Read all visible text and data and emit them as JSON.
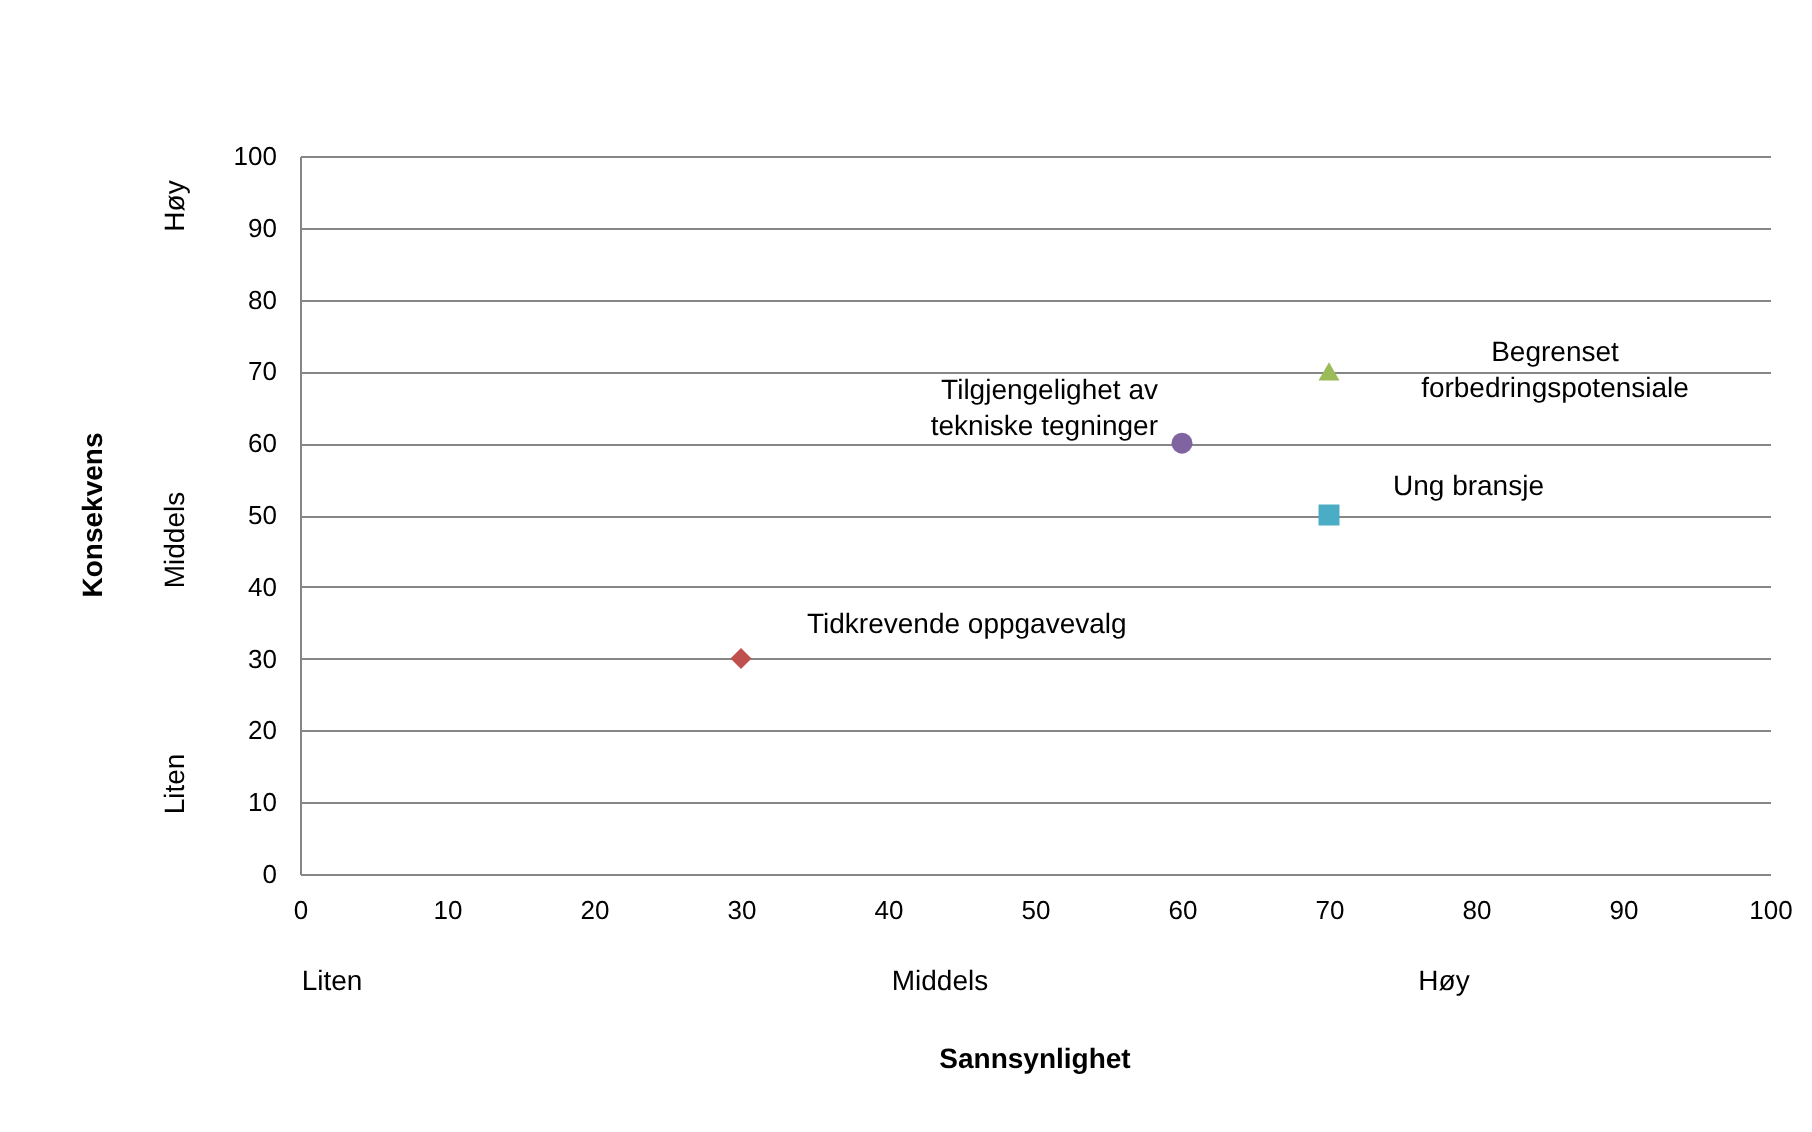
{
  "chart_data": {
    "type": "scatter",
    "xlabel": "Sannsynlighet",
    "ylabel": "Konsekvens",
    "xlim": [
      0,
      100
    ],
    "xticks": [
      0,
      10,
      20,
      30,
      40,
      50,
      60,
      70,
      80,
      90,
      100
    ],
    "ylim": [
      0,
      100
    ],
    "yticks": [
      0,
      10,
      20,
      30,
      40,
      50,
      60,
      70,
      80,
      90,
      100
    ],
    "annotations": [
      "Liten",
      "Middels",
      "Høy",
      "Liten",
      "Middels",
      "Høy"
    ],
    "grid": "y",
    "series": [
      {
        "name": "Tidkrevende oppgavevalg",
        "color": "#c0504d",
        "marker": "diamond",
        "x": [
          30
        ],
        "values": [
          30
        ]
      },
      {
        "name": "Tilgjengelighet av tekniske tegninger",
        "color": "#8064a2",
        "marker": "circle",
        "x": [
          60
        ],
        "values": [
          60
        ]
      },
      {
        "name": "Begrenset forbedringspotensiale",
        "color": "#9bbb59",
        "marker": "triangle",
        "x": [
          70
        ],
        "values": [
          70
        ]
      },
      {
        "name": "Ung bransje",
        "color": "#4bacc6",
        "marker": "square",
        "x": [
          70
        ],
        "values": [
          50
        ]
      }
    ]
  }
}
